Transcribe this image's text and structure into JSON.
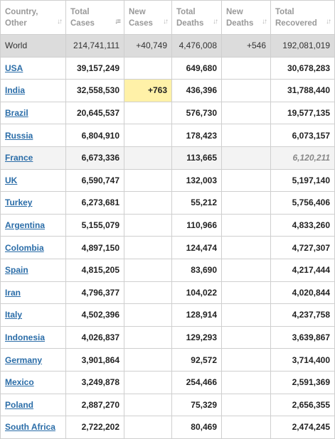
{
  "headers": {
    "country": [
      "Country,",
      "Other"
    ],
    "total_cases": [
      "Total",
      "Cases"
    ],
    "new_cases": [
      "New",
      "Cases"
    ],
    "total_deaths": [
      "Total",
      "Deaths"
    ],
    "new_deaths": [
      "New",
      "Deaths"
    ],
    "total_recovered": [
      "Total",
      "Recovered"
    ]
  },
  "world": {
    "country": "World",
    "total_cases": "214,741,111",
    "new_cases": "+40,749",
    "total_deaths": "4,476,008",
    "new_deaths": "+546",
    "total_recovered": "192,081,019"
  },
  "rows": [
    {
      "country": "USA",
      "total_cases": "39,157,249",
      "new_cases": "",
      "total_deaths": "649,680",
      "new_deaths": "",
      "total_recovered": "30,678,283"
    },
    {
      "country": "India",
      "total_cases": "32,558,530",
      "new_cases": "+763",
      "total_deaths": "436,396",
      "new_deaths": "",
      "total_recovered": "31,788,440"
    },
    {
      "country": "Brazil",
      "total_cases": "20,645,537",
      "new_cases": "",
      "total_deaths": "576,730",
      "new_deaths": "",
      "total_recovered": "19,577,135"
    },
    {
      "country": "Russia",
      "total_cases": "6,804,910",
      "new_cases": "",
      "total_deaths": "178,423",
      "new_deaths": "",
      "total_recovered": "6,073,157"
    },
    {
      "country": "France",
      "total_cases": "6,673,336",
      "new_cases": "",
      "total_deaths": "113,665",
      "new_deaths": "",
      "total_recovered": "6,120,211"
    },
    {
      "country": "UK",
      "total_cases": "6,590,747",
      "new_cases": "",
      "total_deaths": "132,003",
      "new_deaths": "",
      "total_recovered": "5,197,140"
    },
    {
      "country": "Turkey",
      "total_cases": "6,273,681",
      "new_cases": "",
      "total_deaths": "55,212",
      "new_deaths": "",
      "total_recovered": "5,756,406"
    },
    {
      "country": "Argentina",
      "total_cases": "5,155,079",
      "new_cases": "",
      "total_deaths": "110,966",
      "new_deaths": "",
      "total_recovered": "4,833,260"
    },
    {
      "country": "Colombia",
      "total_cases": "4,897,150",
      "new_cases": "",
      "total_deaths": "124,474",
      "new_deaths": "",
      "total_recovered": "4,727,307"
    },
    {
      "country": "Spain",
      "total_cases": "4,815,205",
      "new_cases": "",
      "total_deaths": "83,690",
      "new_deaths": "",
      "total_recovered": "4,217,444"
    },
    {
      "country": "Iran",
      "total_cases": "4,796,377",
      "new_cases": "",
      "total_deaths": "104,022",
      "new_deaths": "",
      "total_recovered": "4,020,844"
    },
    {
      "country": "Italy",
      "total_cases": "4,502,396",
      "new_cases": "",
      "total_deaths": "128,914",
      "new_deaths": "",
      "total_recovered": "4,237,758"
    },
    {
      "country": "Indonesia",
      "total_cases": "4,026,837",
      "new_cases": "",
      "total_deaths": "129,293",
      "new_deaths": "",
      "total_recovered": "3,639,867"
    },
    {
      "country": "Germany",
      "total_cases": "3,901,864",
      "new_cases": "",
      "total_deaths": "92,572",
      "new_deaths": "",
      "total_recovered": "3,714,400"
    },
    {
      "country": "Mexico",
      "total_cases": "3,249,878",
      "new_cases": "",
      "total_deaths": "254,466",
      "new_deaths": "",
      "total_recovered": "2,591,369"
    },
    {
      "country": "Poland",
      "total_cases": "2,887,270",
      "new_cases": "",
      "total_deaths": "75,329",
      "new_deaths": "",
      "total_recovered": "2,656,355"
    },
    {
      "country": "South Africa",
      "total_cases": "2,722,202",
      "new_cases": "",
      "total_deaths": "80,469",
      "new_deaths": "",
      "total_recovered": "2,474,245"
    }
  ],
  "styles": {
    "highlight_new_case_color": "#fff1a8",
    "link_color": "#2b6da8",
    "world_row_bg": "#dcdcdc"
  }
}
